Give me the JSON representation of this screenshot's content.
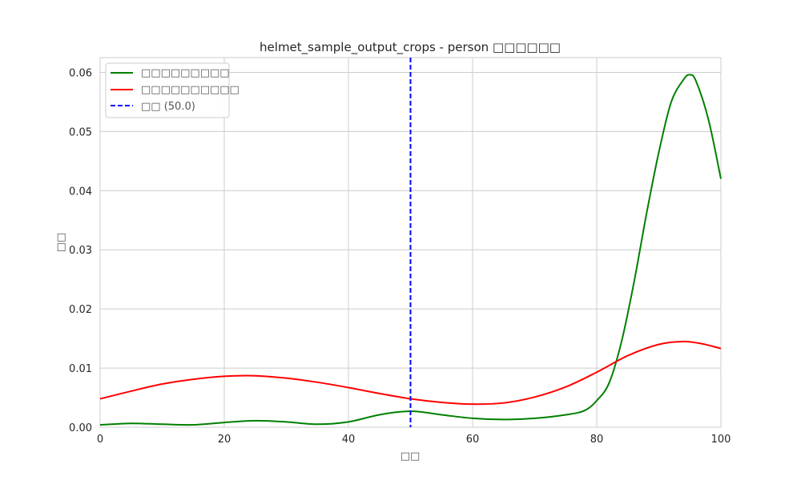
{
  "chart_data": {
    "type": "line",
    "title": "helmet_sample_output_crops - person □□□□□□",
    "xlabel": "□□",
    "ylabel": "□□",
    "xlim": [
      0,
      100
    ],
    "ylim": [
      0,
      0.0625
    ],
    "x_ticks": [
      "0",
      "20",
      "40",
      "60",
      "80",
      "100"
    ],
    "y_ticks": [
      "0.00",
      "0.01",
      "0.02",
      "0.03",
      "0.04",
      "0.05",
      "0.06"
    ],
    "grid": true,
    "legend_position": "top-left",
    "series": [
      {
        "name": "□□□□□□□□□",
        "color": "#008000",
        "points": [
          [
            0,
            0.0004
          ],
          [
            5,
            0.00065
          ],
          [
            10,
            0.0005
          ],
          [
            15,
            0.0004
          ],
          [
            20,
            0.0008
          ],
          [
            25,
            0.0011
          ],
          [
            30,
            0.0009
          ],
          [
            35,
            0.0005
          ],
          [
            40,
            0.0009
          ],
          [
            45,
            0.0021
          ],
          [
            50,
            0.0027
          ],
          [
            55,
            0.0021
          ],
          [
            60,
            0.0015
          ],
          [
            65,
            0.0013
          ],
          [
            70,
            0.0015
          ],
          [
            75,
            0.0021
          ],
          [
            78,
            0.0028
          ],
          [
            80,
            0.0045
          ],
          [
            82,
            0.0075
          ],
          [
            84,
            0.0145
          ],
          [
            86,
            0.0245
          ],
          [
            88,
            0.036
          ],
          [
            90,
            0.0465
          ],
          [
            92,
            0.055
          ],
          [
            94,
            0.0588
          ],
          [
            95,
            0.0596
          ],
          [
            96,
            0.0585
          ],
          [
            98,
            0.052
          ],
          [
            100,
            0.042
          ]
        ]
      },
      {
        "name": "□□□□□□□□□□",
        "color": "#ff0000",
        "points": [
          [
            0,
            0.0048
          ],
          [
            5,
            0.0061
          ],
          [
            10,
            0.0073
          ],
          [
            15,
            0.0081
          ],
          [
            20,
            0.0086
          ],
          [
            25,
            0.0087
          ],
          [
            30,
            0.0083
          ],
          [
            35,
            0.0076
          ],
          [
            40,
            0.0067
          ],
          [
            45,
            0.0057
          ],
          [
            50,
            0.0048
          ],
          [
            55,
            0.0042
          ],
          [
            60,
            0.0039
          ],
          [
            65,
            0.0041
          ],
          [
            70,
            0.0051
          ],
          [
            75,
            0.0068
          ],
          [
            80,
            0.0093
          ],
          [
            85,
            0.0121
          ],
          [
            90,
            0.014
          ],
          [
            94,
            0.0145
          ],
          [
            97,
            0.0141
          ],
          [
            100,
            0.0133
          ]
        ]
      }
    ],
    "threshold": {
      "x": 50,
      "label": "□□ (50.0)",
      "color": "#0000ff",
      "style": "dashed"
    }
  }
}
